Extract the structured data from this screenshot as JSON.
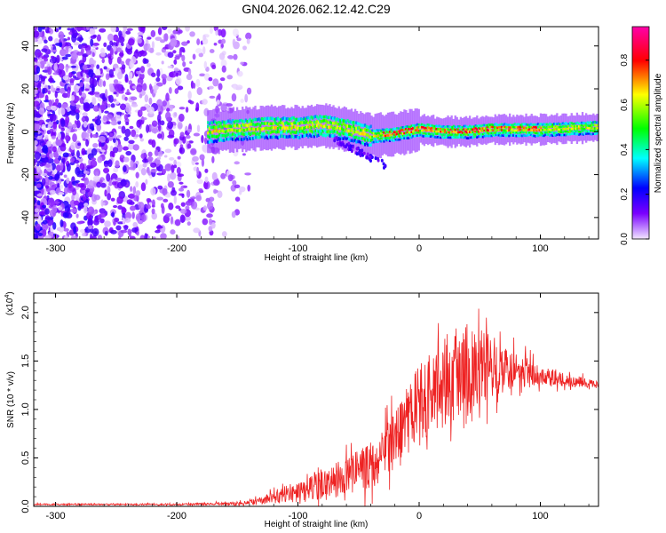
{
  "figure": {
    "title": "GN04.2026.062.12.42.C29"
  },
  "chart_data": [
    {
      "type": "heatmap",
      "xlabel": "Height of straight line (km)",
      "ylabel": "Frequency (Hz)",
      "xlim": [
        -318,
        148
      ],
      "ylim": [
        -50,
        49
      ],
      "x_ticks": [
        -300,
        -200,
        -100,
        0,
        100
      ],
      "y_ticks": [
        -40,
        -20,
        0,
        20,
        40
      ],
      "colorbar": {
        "label": "Normalized spectral amplitude",
        "range": [
          0,
          0.95
        ],
        "ticks": [
          0.0,
          0.2,
          0.4,
          0.6,
          0.8
        ],
        "colors": [
          "#f2e6ff",
          "#7a00ff",
          "#0000ff",
          "#00ffff",
          "#00ff00",
          "#ffff00",
          "#ff0000",
          "#ff00aa"
        ]
      },
      "noise_region_x": [
        -318,
        -140
      ],
      "signal_band": {
        "x_start": -175,
        "x_end": 148,
        "center_hz": [
          {
            "x": -175,
            "y": 0
          },
          {
            "x": -150,
            "y": 1
          },
          {
            "x": -120,
            "y": 2
          },
          {
            "x": -100,
            "y": 2
          },
          {
            "x": -80,
            "y": 3
          },
          {
            "x": -60,
            "y": 1
          },
          {
            "x": -40,
            "y": -2
          },
          {
            "x": -20,
            "y": -1
          },
          {
            "x": 0,
            "y": 1
          },
          {
            "x": 20,
            "y": 0
          },
          {
            "x": 40,
            "y": 0
          },
          {
            "x": 60,
            "y": 1
          },
          {
            "x": 80,
            "y": 1
          },
          {
            "x": 100,
            "y": 1
          },
          {
            "x": 148,
            "y": 2
          }
        ],
        "half_width_hz": 4,
        "peak_amplitude_x": [
          -30,
          100
        ]
      }
    },
    {
      "type": "line",
      "xlabel": "Height of straight line (km)",
      "ylabel": "SNR (10 * v/v)",
      "y_multiplier": "(x10",
      "y_multiplier_exp": "4",
      "xlim": [
        -318,
        148
      ],
      "ylim": [
        0,
        2.2
      ],
      "x_ticks": [
        -300,
        -200,
        -100,
        0,
        100
      ],
      "y_ticks": [
        "0.0",
        "0.5",
        "1.0",
        "1.5",
        "2.0"
      ],
      "series": [
        {
          "color": "#ee2222",
          "envelope": [
            {
              "x": -318,
              "mean": 0.02,
              "spread": 0.01
            },
            {
              "x": -200,
              "mean": 0.02,
              "spread": 0.01
            },
            {
              "x": -150,
              "mean": 0.03,
              "spread": 0.02
            },
            {
              "x": -130,
              "mean": 0.06,
              "spread": 0.05
            },
            {
              "x": -100,
              "mean": 0.16,
              "spread": 0.15
            },
            {
              "x": -80,
              "mean": 0.22,
              "spread": 0.2
            },
            {
              "x": -60,
              "mean": 0.3,
              "spread": 0.25
            },
            {
              "x": -40,
              "mean": 0.42,
              "spread": 0.3
            },
            {
              "x": -20,
              "mean": 0.65,
              "spread": 0.4
            },
            {
              "x": 0,
              "mean": 1.05,
              "spread": 0.55
            },
            {
              "x": 20,
              "mean": 1.3,
              "spread": 0.6
            },
            {
              "x": 40,
              "mean": 1.45,
              "spread": 0.55
            },
            {
              "x": 60,
              "mean": 1.45,
              "spread": 0.4
            },
            {
              "x": 80,
              "mean": 1.4,
              "spread": 0.25
            },
            {
              "x": 100,
              "mean": 1.35,
              "spread": 0.12
            },
            {
              "x": 148,
              "mean": 1.25,
              "spread": 0.05
            }
          ]
        }
      ]
    }
  ]
}
